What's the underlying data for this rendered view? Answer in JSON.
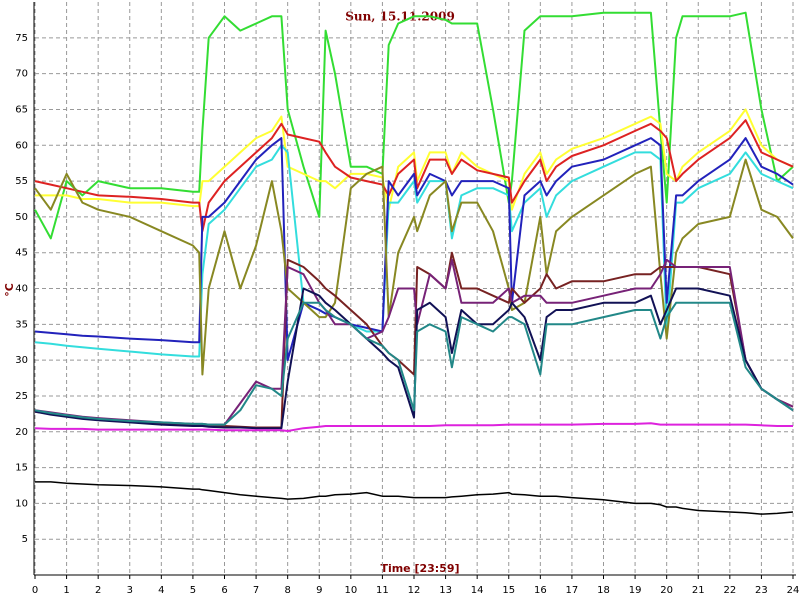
{
  "chart_data": {
    "type": "line",
    "title": "Sun, 15.11.2009",
    "x_label": "Time [23:59]",
    "y_label": "°C",
    "x": [
      0,
      0.5,
      1,
      1.5,
      2,
      3,
      4,
      5,
      5.2,
      5.3,
      5.5,
      6,
      6.5,
      7,
      7.5,
      7.8,
      8,
      8.5,
      9,
      9.2,
      9.5,
      10,
      10.5,
      11,
      11.2,
      11.5,
      12,
      12.1,
      12.5,
      13,
      13.2,
      13.5,
      14,
      14.5,
      15,
      15.1,
      15.5,
      16,
      16.2,
      16.5,
      17,
      18,
      19,
      19.5,
      19.8,
      20,
      20.3,
      20.5,
      21,
      22,
      22.5,
      23,
      23.5,
      24
    ],
    "xlim": [
      0,
      24
    ],
    "xticks": [
      0,
      1,
      2,
      3,
      4,
      5,
      6,
      7,
      8,
      9,
      10,
      11,
      12,
      13,
      14,
      15,
      16,
      17,
      18,
      19,
      20,
      21,
      22,
      23,
      24
    ],
    "ylim": [
      0,
      80
    ],
    "yticks": [
      5,
      10,
      15,
      20,
      25,
      30,
      35,
      40,
      45,
      50,
      55,
      60,
      65,
      70,
      75
    ],
    "grid": true,
    "series": [
      {
        "color": "#33dd33",
        "values": [
          51,
          47,
          55,
          53,
          55,
          54,
          54,
          53.5,
          53.5,
          62,
          75,
          78,
          76,
          77,
          78,
          78,
          65,
          57,
          50,
          76,
          70,
          57,
          57,
          56,
          74,
          77,
          78,
          78,
          78,
          77.5,
          77,
          77,
          77,
          65,
          52,
          55,
          76,
          78,
          78,
          78,
          78,
          78.5,
          78.5,
          78.5,
          62,
          52,
          75,
          78,
          78,
          78,
          78.5,
          65,
          55,
          57
        ]
      },
      {
        "color": "#ffff33",
        "values": [
          53,
          53,
          53,
          52.5,
          52.5,
          52,
          52,
          51.5,
          51.5,
          55,
          55,
          57,
          59,
          61,
          62,
          64,
          57,
          56,
          55,
          55,
          54,
          56,
          56,
          55.5,
          51,
          57,
          59,
          55,
          59,
          59,
          56,
          59,
          57,
          56,
          55,
          51,
          56,
          59,
          56,
          58,
          59.5,
          61,
          63,
          64,
          63,
          56,
          55,
          57,
          59,
          62,
          65,
          60,
          58,
          57
        ]
      },
      {
        "color": "#dd2222",
        "values": [
          55,
          54.5,
          54,
          53.5,
          53,
          52.8,
          52.5,
          52,
          52,
          48,
          52,
          55,
          57,
          59,
          61,
          63,
          61.5,
          61,
          60.5,
          59,
          57,
          55.5,
          55,
          54.5,
          53,
          56,
          58,
          54,
          58,
          58,
          56,
          58,
          56.5,
          56,
          55.5,
          52,
          55,
          58,
          55,
          57,
          58.5,
          60,
          62,
          63,
          62,
          61,
          55,
          56,
          58,
          61,
          63.5,
          59,
          58,
          57
        ]
      },
      {
        "color": "#33dddd",
        "values": [
          32.5,
          32.3,
          32,
          31.8,
          31.6,
          31.2,
          30.8,
          30.5,
          30.5,
          42,
          49,
          51,
          54,
          57,
          58,
          60,
          59,
          38,
          37,
          36.5,
          36,
          35,
          34,
          34,
          52,
          52,
          55,
          52,
          55,
          55,
          47,
          53,
          54,
          54,
          53,
          48,
          52,
          54,
          50,
          53,
          55,
          57,
          59,
          59,
          58,
          34,
          52,
          52,
          54,
          56,
          59,
          56,
          55,
          54
        ]
      },
      {
        "color": "#2222bb",
        "values": [
          34,
          33.8,
          33.6,
          33.4,
          33.3,
          33,
          32.8,
          32.5,
          32.5,
          50,
          50,
          52,
          55,
          58,
          60,
          61,
          30,
          38,
          37,
          36.5,
          36,
          35,
          34.5,
          34,
          55,
          53,
          56,
          53,
          56,
          55,
          53,
          55,
          55,
          55,
          54,
          38,
          53,
          55,
          53,
          55,
          57,
          58,
          60,
          61,
          60,
          38,
          53,
          53,
          55,
          58,
          61,
          57,
          56,
          54.5
        ]
      },
      {
        "color": "#888822",
        "values": [
          54,
          51,
          56,
          52,
          51,
          50,
          48,
          46,
          45,
          28,
          40,
          48,
          40,
          46,
          55,
          48,
          40,
          38,
          36,
          36,
          38,
          54,
          56,
          57,
          36,
          45,
          50,
          48,
          53,
          55,
          48,
          52,
          52,
          48,
          40,
          37,
          38,
          50,
          42,
          48,
          50,
          53,
          56,
          57,
          42,
          33,
          45,
          47,
          49,
          50,
          58,
          51,
          50,
          47
        ]
      },
      {
        "color": "#772222",
        "values": [
          22.8,
          22.5,
          22.3,
          22,
          21.8,
          21.5,
          21.2,
          21,
          21,
          21,
          20.9,
          20.8,
          20.7,
          20.6,
          20.6,
          20.6,
          44,
          43,
          41,
          40,
          39,
          37,
          35,
          32,
          31,
          30,
          28,
          43,
          42,
          40,
          45,
          40,
          40,
          39,
          38,
          40,
          38,
          40,
          42,
          40,
          41,
          41,
          42,
          42,
          43,
          43,
          43,
          43,
          43,
          42,
          30,
          26,
          24.5,
          23.5
        ]
      },
      {
        "color": "#772277",
        "values": [
          23,
          22.7,
          22.4,
          22.1,
          21.9,
          21.6,
          21.3,
          21.1,
          21.1,
          21.1,
          21,
          21,
          24,
          27,
          26,
          26,
          43,
          42,
          38,
          37,
          35,
          35,
          33,
          34,
          36,
          40,
          40,
          35,
          42,
          40,
          44,
          38,
          38,
          38,
          40,
          38,
          39,
          39,
          38,
          38,
          38,
          39,
          40,
          40,
          42,
          44,
          43,
          43,
          43,
          43,
          30,
          26,
          24.5,
          23.5
        ]
      },
      {
        "color": "#111155",
        "values": [
          22.8,
          22.4,
          22.1,
          21.8,
          21.6,
          21.3,
          21,
          20.8,
          20.8,
          20.8,
          20.7,
          20.6,
          20.6,
          20.5,
          20.5,
          20.5,
          27,
          40,
          39,
          38,
          37,
          35,
          33,
          31,
          30,
          29,
          22,
          37,
          38,
          36,
          31,
          37,
          35,
          35,
          37,
          38,
          36,
          30,
          36,
          37,
          37,
          38,
          38,
          39,
          35,
          37,
          40,
          40,
          40,
          39,
          30,
          26,
          24.5,
          23
        ]
      },
      {
        "color": "#228888",
        "values": [
          23,
          22.6,
          22.3,
          22,
          21.8,
          21.5,
          21.3,
          21.1,
          21.1,
          21.1,
          21,
          21,
          23,
          26.5,
          26,
          25,
          33,
          38,
          38,
          37,
          36,
          35,
          33,
          32,
          31,
          30,
          23,
          34,
          35,
          34,
          29,
          36,
          35,
          34,
          36,
          36,
          35,
          28,
          35,
          35,
          35,
          36,
          37,
          37,
          33,
          36,
          38,
          38,
          38,
          38,
          29,
          26,
          24.5,
          23
        ]
      },
      {
        "color": "#dd22dd",
        "values": [
          20.5,
          20.4,
          20.4,
          20.4,
          20.3,
          20.3,
          20.3,
          20.3,
          20.3,
          20.3,
          20.3,
          20.2,
          20.2,
          20.2,
          20.2,
          20.2,
          20.1,
          20.5,
          20.7,
          20.8,
          20.8,
          20.8,
          20.8,
          20.8,
          20.8,
          20.8,
          20.8,
          20.8,
          20.8,
          20.9,
          20.9,
          20.9,
          20.9,
          20.9,
          21,
          21,
          21,
          21,
          21,
          21,
          21,
          21.1,
          21.1,
          21.2,
          21,
          21,
          21,
          21,
          21,
          21,
          21,
          20.9,
          20.8,
          20.8
        ]
      },
      {
        "color": "#000000",
        "values": [
          13,
          13,
          12.8,
          12.7,
          12.6,
          12.5,
          12.3,
          12,
          12,
          11.9,
          11.8,
          11.5,
          11.2,
          11,
          10.8,
          10.7,
          10.6,
          10.7,
          11,
          11,
          11.2,
          11.3,
          11.5,
          11,
          11,
          11,
          10.8,
          10.8,
          10.8,
          10.8,
          10.9,
          11,
          11.2,
          11.3,
          11.5,
          11.3,
          11.2,
          11,
          11,
          11,
          10.8,
          10.5,
          10,
          10,
          9.8,
          9.5,
          9.5,
          9.3,
          9,
          8.8,
          8.7,
          8.5,
          8.6,
          8.8
        ]
      }
    ]
  }
}
